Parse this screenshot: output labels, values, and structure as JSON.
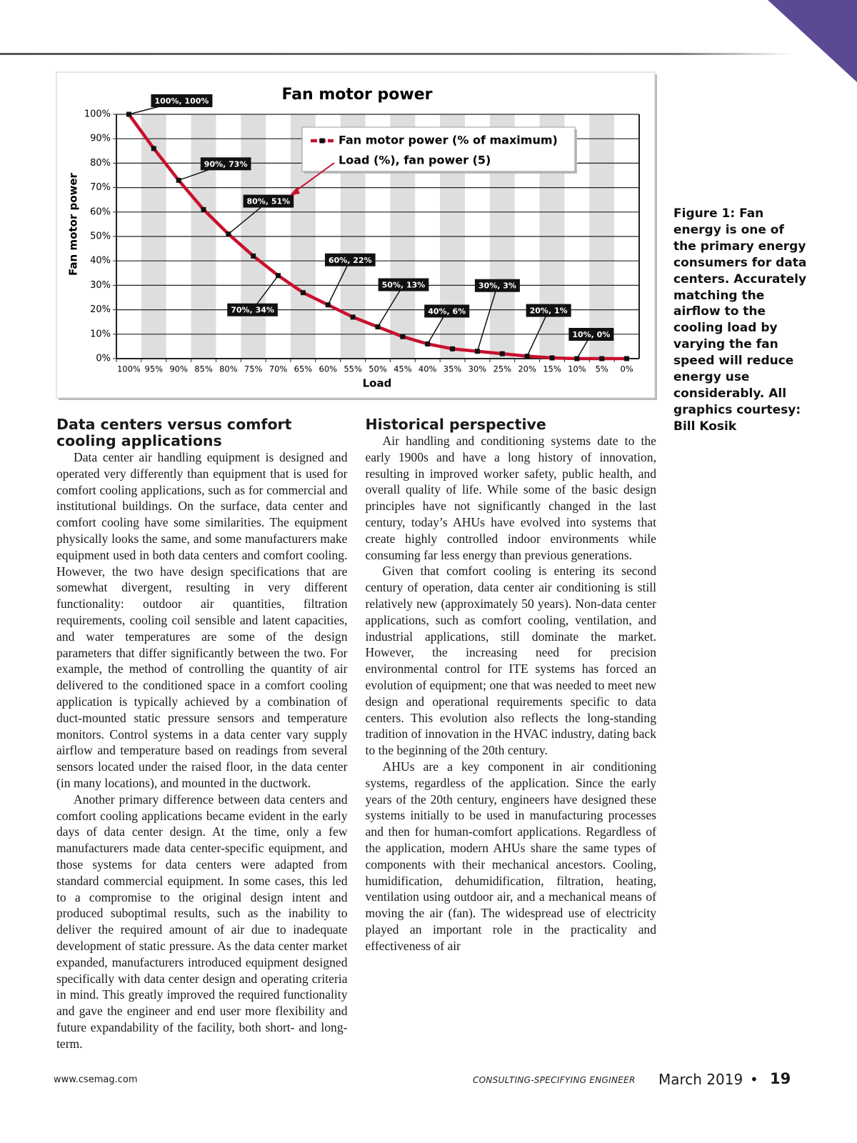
{
  "chart_data": {
    "type": "line",
    "title": "Fan motor power",
    "xlabel": "Load",
    "ylabel": "Fan motor power",
    "categories": [
      "100%",
      "95%",
      "90%",
      "85%",
      "80%",
      "75%",
      "70%",
      "65%",
      "60%",
      "55%",
      "50%",
      "45%",
      "40%",
      "35%",
      "30%",
      "25%",
      "20%",
      "15%",
      "10%",
      "5%",
      "0%"
    ],
    "series": [
      {
        "name": "Fan motor power (% of maximum)",
        "color": "#c8102e",
        "values": [
          100,
          86,
          73,
          61,
          51,
          42,
          34,
          27,
          22,
          17,
          13,
          9,
          6,
          4,
          3,
          2,
          1,
          0.3,
          0,
          0,
          0
        ],
        "value_labels": [
          "100%, 100%",
          null,
          "90%, 73%",
          null,
          "80%, 51%",
          null,
          "70%, 34%",
          null,
          "60%, 22%",
          null,
          "50%, 13%",
          null,
          "40%, 6%",
          null,
          "30%, 3%",
          null,
          "20%, 1%",
          null,
          "10%, 0%",
          null,
          null
        ]
      }
    ],
    "annotation": "Load (%), fan power (5)",
    "ylim": [
      0,
      100
    ],
    "yticks": [
      {
        "value": 0,
        "label": "0%"
      },
      {
        "value": 10,
        "label": "10%"
      },
      {
        "value": 20,
        "label": "20%"
      },
      {
        "value": 30,
        "label": "30%"
      },
      {
        "value": 40,
        "label": "40%"
      },
      {
        "value": 50,
        "label": "50%"
      },
      {
        "value": 60,
        "label": "60%"
      },
      {
        "value": 70,
        "label": "70%"
      },
      {
        "value": 80,
        "label": "80%"
      },
      {
        "value": 90,
        "label": "90%"
      },
      {
        "value": 100,
        "label": "100%"
      }
    ],
    "grid": true
  },
  "caption": "Figure 1: Fan energy is one of the primary energy consumers for data centers. Accurately matching the airflow to the cooling load by varying the fan speed will reduce energy use considerably. All graphics courtesy: Bill Kosik",
  "article": {
    "sections": [
      {
        "heading": "Data centers versus comfort cooling applications",
        "paragraphs": [
          "Data center air handling equipment is designed and operated very differently than equipment that is used for comfort cooling applications, such as for commercial and institutional buildings. On the surface, data center and comfort cooling have some similarities. The equipment physically looks the same, and some manufacturers make equipment used in both data centers and comfort cooling. However, the two have design specifications that are somewhat divergent, resulting in very different functionality: outdoor air quantities, filtration requirements, cooling coil sensible and latent capacities, and water temperatures are some of the design parameters that differ significantly between the two. For example, the method of controlling the quantity of air delivered to the conditioned space in a comfort cooling application is typically achieved by a combination of duct-mounted static pressure sensors and temperature monitors. Control systems in a data center vary supply airflow and temperature based on readings from several sensors located under the raised floor, in the data center (in many locations), and mounted in the ductwork.",
          "Another primary difference between data centers and comfort cooling applications became evident in the early days of data center design. At the time, only a few manufacturers made data center-specific equipment, and those systems for data centers were adapted from standard commercial equipment. In some cases, this led to a compromise to the original design intent and produced suboptimal results, such as the inability to deliver the required amount of air due to inadequate development of static pressure. As the data center market expanded, manufacturers introduced equipment designed specifically with data center design and operating criteria in mind. This greatly improved the required functionality and gave the engineer and end user more flexibility and future expandability of the facility, both short- and long-term."
        ]
      },
      {
        "heading": "Historical perspective",
        "paragraphs": [
          "Air handling and conditioning systems date to the early 1900s and have a long history of innovation, resulting in improved worker safety, public health, and overall quality of life. While some of the basic design principles have not significantly changed in the last century, today’s AHUs have evolved into systems that create highly controlled indoor environments while consuming far less energy than previous generations.",
          "Given that comfort cooling is entering its second century of operation, data center air conditioning is still relatively new (approximately 50 years). Non-data center applications, such as comfort cooling, ventilation, and industrial applications, still dominate the market. However, the increasing need for precision environmental control for ITE systems has forced an evolution of equipment; one that was needed to meet new design and operational requirements specific to data centers. This evolution also reflects the long-standing tradition of innovation in the HVAC industry, dating back to the beginning of the 20th century.",
          "AHUs are a key component in air conditioning systems, regardless of the application. Since the early years of the 20th century, engineers have designed these systems initially to be used in manufacturing processes and then for human-comfort applications. Regardless of the application, modern AHUs share the same types of components with their mechanical ancestors. Cooling, humidification, dehumidification, filtration, heating, ventilation using outdoor air, and a mechanical means of moving the air (fan). The widespread use of electricity played an important role in the practicality and effectiveness of air"
        ]
      }
    ]
  },
  "footer": {
    "website": "www.csemag.com",
    "magazine": "CONSULTING-SPECIFYING ENGINEER",
    "date": "March 2019",
    "page": "19"
  }
}
